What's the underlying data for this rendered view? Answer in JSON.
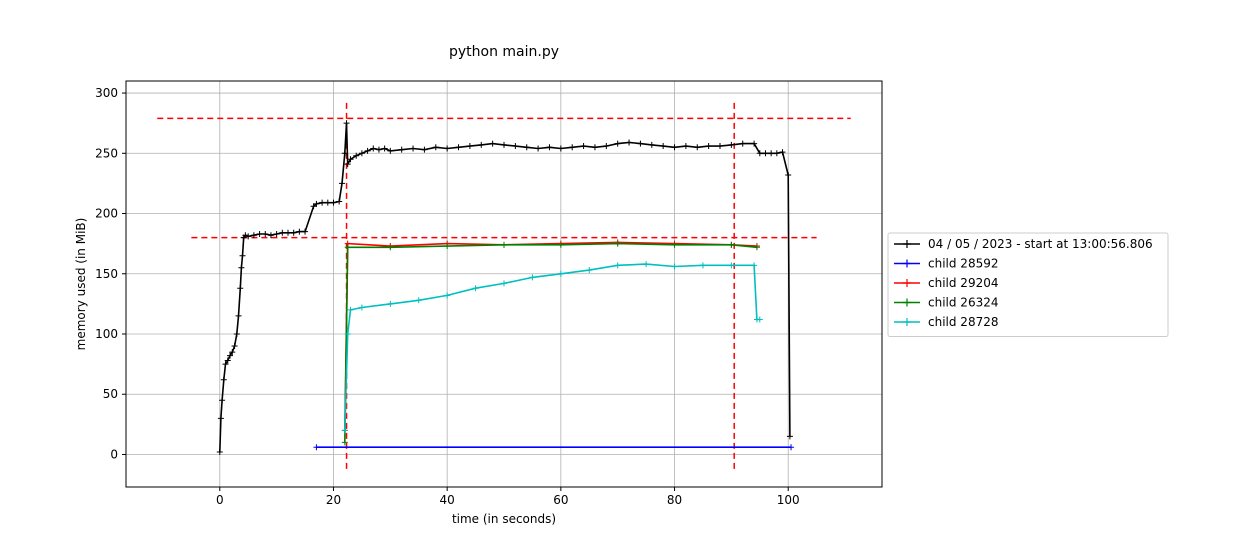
{
  "chart_data": {
    "type": "line",
    "title": "python main.py",
    "xlabel": "time (in seconds)",
    "ylabel": "memory used (in MiB)",
    "xlim": [
      -16.5,
      116.5
    ],
    "ylim": [
      -27,
      310
    ],
    "xticks": [
      0,
      20,
      40,
      60,
      80,
      100
    ],
    "yticks": [
      0,
      50,
      100,
      150,
      200,
      250,
      300
    ],
    "grid": true,
    "legend_position": "right",
    "series": [
      {
        "name": "04 / 05 / 2023 - start at 13:00:56.806",
        "color": "#000000",
        "marker": "+",
        "x": [
          0,
          0.2,
          0.4,
          0.7,
          1.0,
          1.4,
          1.8,
          2.2,
          2.6,
          3.0,
          3.3,
          3.6,
          3.8,
          4.0,
          4.2,
          4.5,
          5.0,
          6,
          7,
          8,
          9,
          10,
          11,
          12,
          13,
          14,
          15,
          16.5,
          17,
          18,
          19,
          20,
          21,
          21.5,
          22.0,
          22.3,
          22.5,
          23,
          24,
          25,
          26,
          27,
          28,
          29,
          30,
          32,
          34,
          36,
          38,
          40,
          42,
          44,
          46,
          48,
          50,
          52,
          54,
          56,
          58,
          60,
          62,
          64,
          66,
          68,
          70,
          72,
          74,
          76,
          78,
          80,
          82,
          84,
          86,
          88,
          90,
          92,
          94,
          95,
          96,
          97,
          98,
          99,
          100,
          100.3
        ],
        "y": [
          2,
          30,
          45,
          62,
          75,
          78,
          82,
          85,
          90,
          100,
          115,
          138,
          155,
          165,
          180,
          182,
          181,
          182,
          183,
          183,
          182,
          183,
          184,
          184,
          184,
          185,
          185,
          206,
          208,
          209,
          209,
          209,
          210,
          225,
          250,
          275,
          241,
          245,
          248,
          250,
          252,
          254,
          253,
          254,
          252,
          253,
          254,
          253,
          255,
          254,
          255,
          256,
          257,
          258,
          257,
          256,
          255,
          254,
          255,
          254,
          255,
          256,
          255,
          256,
          258,
          259,
          258,
          257,
          256,
          255,
          256,
          255,
          256,
          256,
          257,
          258,
          258,
          250,
          250,
          250,
          250,
          251,
          232,
          15
        ]
      },
      {
        "name": "child 28592",
        "color": "#0000ff",
        "marker": "+",
        "x": [
          17,
          100.5
        ],
        "y": [
          6,
          6
        ]
      },
      {
        "name": "child 29204",
        "color": "#ff0000",
        "marker": "+",
        "x": [
          22,
          22.5,
          30,
          40,
          50,
          60,
          70,
          80,
          90,
          94.5
        ],
        "y": [
          20,
          175,
          173,
          175,
          174,
          175,
          176,
          175,
          174,
          173
        ]
      },
      {
        "name": "child 26324",
        "color": "#008000",
        "marker": "+",
        "x": [
          22,
          22.5,
          30,
          40,
          50,
          60,
          70,
          80,
          90,
          94.5
        ],
        "y": [
          10,
          172,
          172,
          173,
          174,
          174,
          175,
          174,
          174,
          172
        ]
      },
      {
        "name": "child 28728",
        "color": "#00bfbf",
        "marker": "+",
        "x": [
          22,
          22.5,
          23,
          25,
          30,
          35,
          40,
          45,
          50,
          55,
          60,
          65,
          70,
          75,
          80,
          85,
          90,
          94,
          94.5,
          95
        ],
        "y": [
          20,
          100,
          120,
          122,
          125,
          128,
          132,
          138,
          142,
          147,
          150,
          153,
          157,
          158,
          156,
          157,
          157,
          157,
          112,
          112
        ]
      }
    ],
    "reference_lines": {
      "color": "#ff0000",
      "style": "dashed",
      "horizontal": [
        {
          "y": 279,
          "x_from": -11,
          "x_to": 111
        },
        {
          "y": 180,
          "x_from": -5,
          "x_to": 105
        }
      ],
      "vertical": [
        {
          "x": 22.3,
          "y_from": -12,
          "y_to": 293
        },
        {
          "x": 90.5,
          "y_from": -12,
          "y_to": 293
        }
      ]
    }
  }
}
